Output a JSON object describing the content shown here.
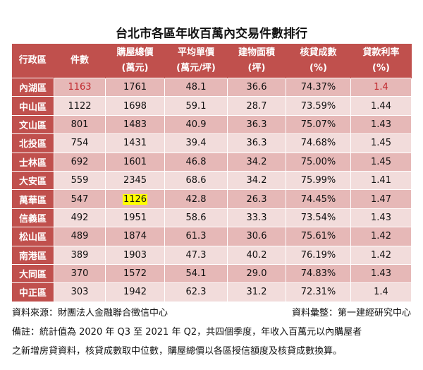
{
  "title": "台北市各區年收百萬內交易件數排行",
  "colors": {
    "header": "#c0504d",
    "row_dark": "#e6b8b7",
    "row_light": "#f2dcdb",
    "highlight": "#ffff00",
    "red_text": "#c0272d"
  },
  "columns": [
    {
      "line1": "行政區",
      "line2": ""
    },
    {
      "line1": "件數",
      "line2": ""
    },
    {
      "line1": "購屋總價",
      "line2": "(萬元)"
    },
    {
      "line1": "平均單價",
      "line2": "(萬元/坪)"
    },
    {
      "line1": "建物面積",
      "line2": "(坪)"
    },
    {
      "line1": "核貸成數",
      "line2": "(%)"
    },
    {
      "line1": "貸款利率",
      "line2": "(%)"
    }
  ],
  "rows": [
    [
      "內湖區",
      "1163",
      "1761",
      "48.1",
      "36.6",
      "74.37%",
      "1.4"
    ],
    [
      "中山區",
      "1122",
      "1698",
      "59.1",
      "28.7",
      "73.59%",
      "1.44"
    ],
    [
      "文山區",
      "801",
      "1483",
      "40.9",
      "36.3",
      "75.07%",
      "1.43"
    ],
    [
      "北投區",
      "754",
      "1431",
      "39.4",
      "36.3",
      "74.68%",
      "1.45"
    ],
    [
      "士林區",
      "692",
      "1601",
      "46.8",
      "34.2",
      "75.00%",
      "1.45"
    ],
    [
      "大安區",
      "559",
      "2345",
      "68.6",
      "34.2",
      "75.99%",
      "1.41"
    ],
    [
      "萬華區",
      "547",
      "1126",
      "42.8",
      "26.3",
      "74.45%",
      "1.47"
    ],
    [
      "信義區",
      "492",
      "1951",
      "58.6",
      "33.3",
      "73.54%",
      "1.43"
    ],
    [
      "松山區",
      "489",
      "1874",
      "61.3",
      "30.6",
      "75.61%",
      "1.42"
    ],
    [
      "南港區",
      "389",
      "1903",
      "47.3",
      "40.2",
      "76.19%",
      "1.42"
    ],
    [
      "大同區",
      "370",
      "1572",
      "54.1",
      "29.0",
      "74.83%",
      "1.43"
    ],
    [
      "中正區",
      "303",
      "1942",
      "62.3",
      "31.2",
      "72.31%",
      "1.4"
    ]
  ],
  "footer": {
    "source": "資料來源：財團法人金融聯合徵信中心",
    "compiled": "資料彙整：第一建經研究中心",
    "note1": "備註：統計值為 2020 年 Q3 至 2021 年 Q2，共四個季度，年收入百萬元以內購屋者",
    "note2": "之新增房貸資料，核貸成數取中位數，購屋總價以各區授信額度及核貸成數換算。"
  }
}
